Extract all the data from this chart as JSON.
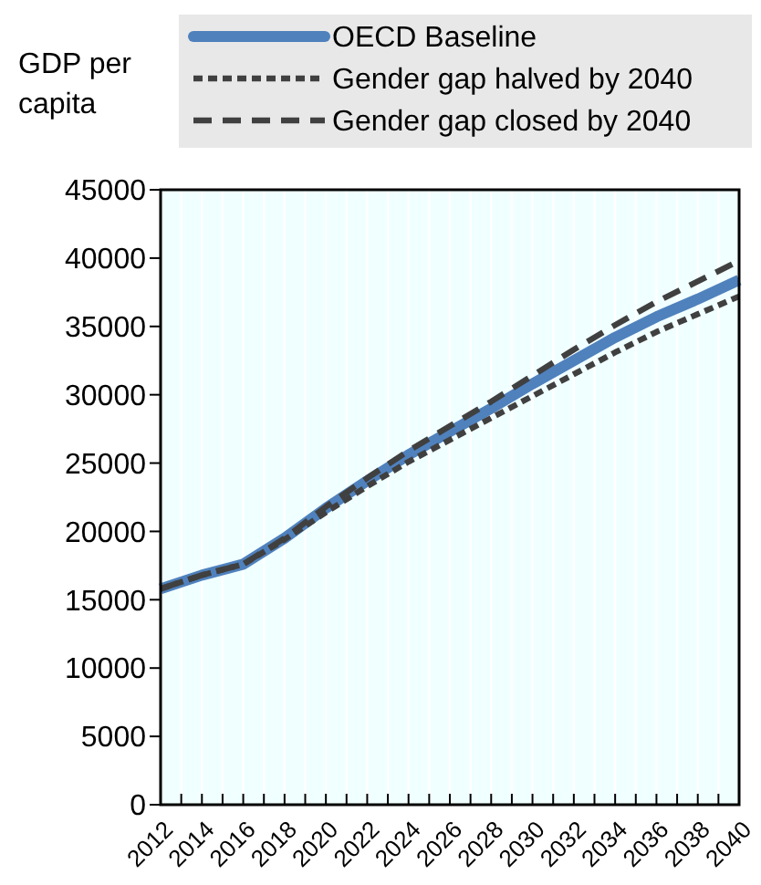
{
  "chart_data": {
    "type": "line",
    "ylabel": "GDP per capita",
    "x": [
      2012,
      2014,
      2016,
      2018,
      2020,
      2022,
      2024,
      2026,
      2028,
      2030,
      2032,
      2034,
      2036,
      2038,
      2040
    ],
    "series": [
      {
        "name": "OECD Baseline",
        "color": "#4f81bd",
        "line_style": "solid",
        "values": [
          15800,
          16800,
          17600,
          19500,
          21700,
          23700,
          25600,
          27300,
          29000,
          30800,
          32500,
          34200,
          35700,
          37000,
          38400
        ]
      },
      {
        "name": "Gender gap halved by 2040",
        "color": "#404040",
        "line_style": "dotted",
        "values": [
          15800,
          16800,
          17600,
          19400,
          21400,
          23300,
          25100,
          26700,
          28300,
          29900,
          31500,
          33100,
          34600,
          35900,
          37200
        ]
      },
      {
        "name": "Gender gap closed by 2040",
        "color": "#404040",
        "line_style": "dashed",
        "values": [
          15800,
          16800,
          17600,
          19500,
          21800,
          23900,
          25900,
          27700,
          29500,
          31400,
          33300,
          35100,
          36800,
          38300,
          39800
        ]
      }
    ],
    "xlim": [
      2012,
      2040
    ],
    "xticks": [
      2012,
      {
        "value": 2013,
        "label": null
      },
      2014,
      {
        "value": 2015,
        "label": null
      },
      2016,
      {
        "value": 2017,
        "label": null
      },
      2018,
      {
        "value": 2019,
        "label": null
      },
      2020,
      {
        "value": 2021,
        "label": null
      },
      2022,
      {
        "value": 2023,
        "label": null
      },
      2024,
      {
        "value": 2025,
        "label": null
      },
      2026,
      {
        "value": 2027,
        "label": null
      },
      2028,
      {
        "value": 2029,
        "label": null
      },
      2030,
      {
        "value": 2031,
        "label": null
      },
      2032,
      {
        "value": 2033,
        "label": null
      },
      2034,
      {
        "value": 2035,
        "label": null
      },
      2036,
      {
        "value": 2037,
        "label": null
      },
      2038,
      {
        "value": 2039,
        "label": null
      },
      2040
    ],
    "ylim": [
      0,
      45000
    ],
    "yticks": [
      0,
      5000,
      10000,
      15000,
      20000,
      25000,
      30000,
      35000,
      40000,
      45000
    ],
    "grid": "x",
    "legend": "top"
  }
}
